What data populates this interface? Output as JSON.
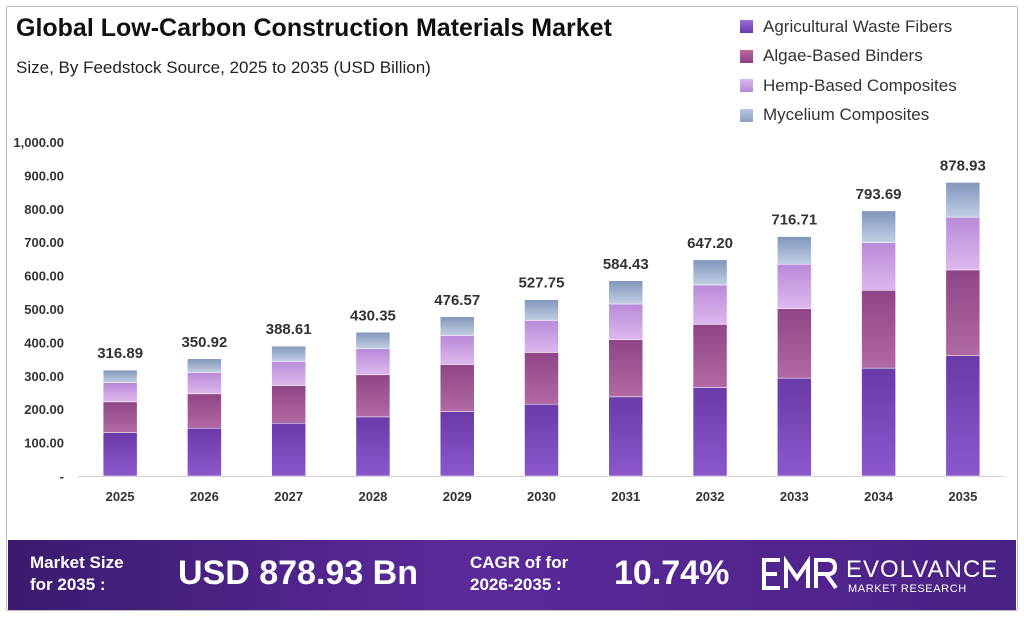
{
  "header": {
    "title": "Global Low-Carbon Construction Materials Market",
    "subtitle": "Size, By Feedstock Source, 2025 to 2035 (USD Billion)"
  },
  "legend": [
    {
      "label": "Agricultural Waste Fibers",
      "color": "#7b4bbf"
    },
    {
      "label": "Algae-Based Binders",
      "color": "#a0508f"
    },
    {
      "label": "Hemp-Based Composites",
      "color": "#c79be0"
    },
    {
      "label": "Mycelium Composites",
      "color": "#9db2d0"
    }
  ],
  "chart_data": {
    "type": "bar",
    "stacked": true,
    "title": "Global Low-Carbon Construction Materials Market",
    "subtitle": "Size, By Feedstock Source, 2025 to 2035 (USD Billion)",
    "categories": [
      "2025",
      "2026",
      "2027",
      "2028",
      "2029",
      "2030",
      "2031",
      "2032",
      "2033",
      "2034",
      "2035"
    ],
    "series": [
      {
        "name": "Agricultural Waste Fibers",
        "values": [
          130,
          143,
          158,
          177,
          193,
          215,
          237,
          265,
          293,
          323,
          360
        ]
      },
      {
        "name": "Algae-Based Binders",
        "values": [
          92,
          103,
          113,
          126,
          141,
          155,
          171,
          189,
          208,
          233,
          257
        ]
      },
      {
        "name": "Hemp-Based Composites",
        "values": [
          58,
          64,
          72,
          78,
          87,
          96,
          107,
          118,
          133,
          143,
          158
        ]
      },
      {
        "name": "Mycelium Composites",
        "values": [
          36.89,
          40.92,
          45.61,
          49.35,
          55.57,
          61.75,
          69.43,
          75.2,
          82.71,
          94.69,
          103.93
        ]
      }
    ],
    "totals": [
      316.89,
      350.92,
      388.61,
      430.35,
      476.57,
      527.75,
      584.43,
      647.2,
      716.71,
      793.69,
      878.93
    ],
    "total_labels": [
      "316.89",
      "350.92",
      "388.61",
      "430.35",
      "476.57",
      "527.75",
      "584.43",
      "647.20",
      "716.71",
      "793.69",
      "878.93"
    ],
    "y_ticks": [
      "-",
      "100.00",
      "200.00",
      "300.00",
      "400.00",
      "500.00",
      "600.00",
      "700.00",
      "800.00",
      "900.00",
      "1,000.00"
    ],
    "ylim": [
      0,
      1000
    ],
    "grid": false,
    "legend_position": "top-right"
  },
  "footer": {
    "market_size_label_line1": "Market Size",
    "market_size_label_line2": "for 2035 :",
    "market_size_value": "USD 878.93 Bn",
    "cagr_label_line1": "CAGR of for",
    "cagr_label_line2": "2026-2035 :",
    "cagr_value": "10.74%",
    "logo_name": "EVOLVANCE",
    "logo_sub": "MARKET RESEARCH",
    "background_color": "#4a2184"
  }
}
